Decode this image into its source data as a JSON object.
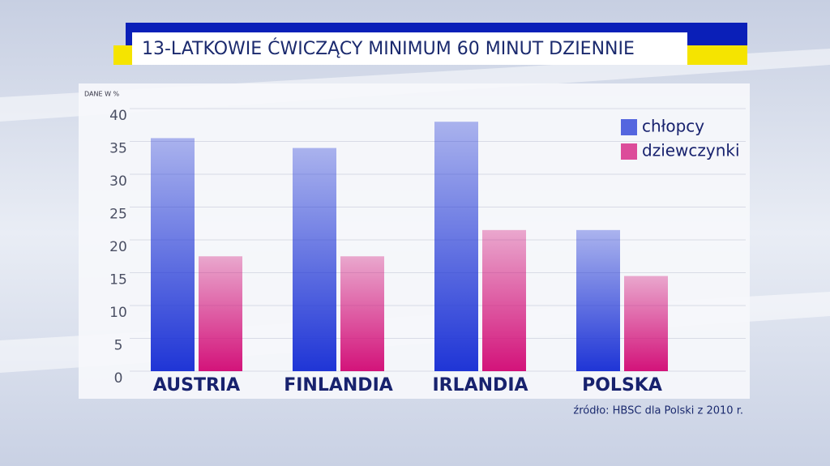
{
  "chart_data": {
    "type": "bar",
    "title": "13-LATKOWIE ĆWICZĄCY MINIMUM 60 MINUT DZIENNIE",
    "ylabel": "DANE W %",
    "categories": [
      "AUSTRIA",
      "FINLANDIA",
      "IRLANDIA",
      "POLSKA"
    ],
    "series": [
      {
        "name": "chłopcy",
        "color": "#1f35d6",
        "values": [
          35.5,
          34,
          38,
          21.5
        ]
      },
      {
        "name": "dziewczynki",
        "color": "#d3137a",
        "values": [
          17.5,
          17.5,
          21.5,
          14.5
        ]
      }
    ],
    "ylim": [
      0,
      40
    ],
    "yticks": [
      0,
      5,
      10,
      15,
      20,
      25,
      30,
      35,
      40
    ],
    "grid": true,
    "legend": "top-right",
    "source": "źródło: HBSC dla Polski z 2010 r."
  }
}
